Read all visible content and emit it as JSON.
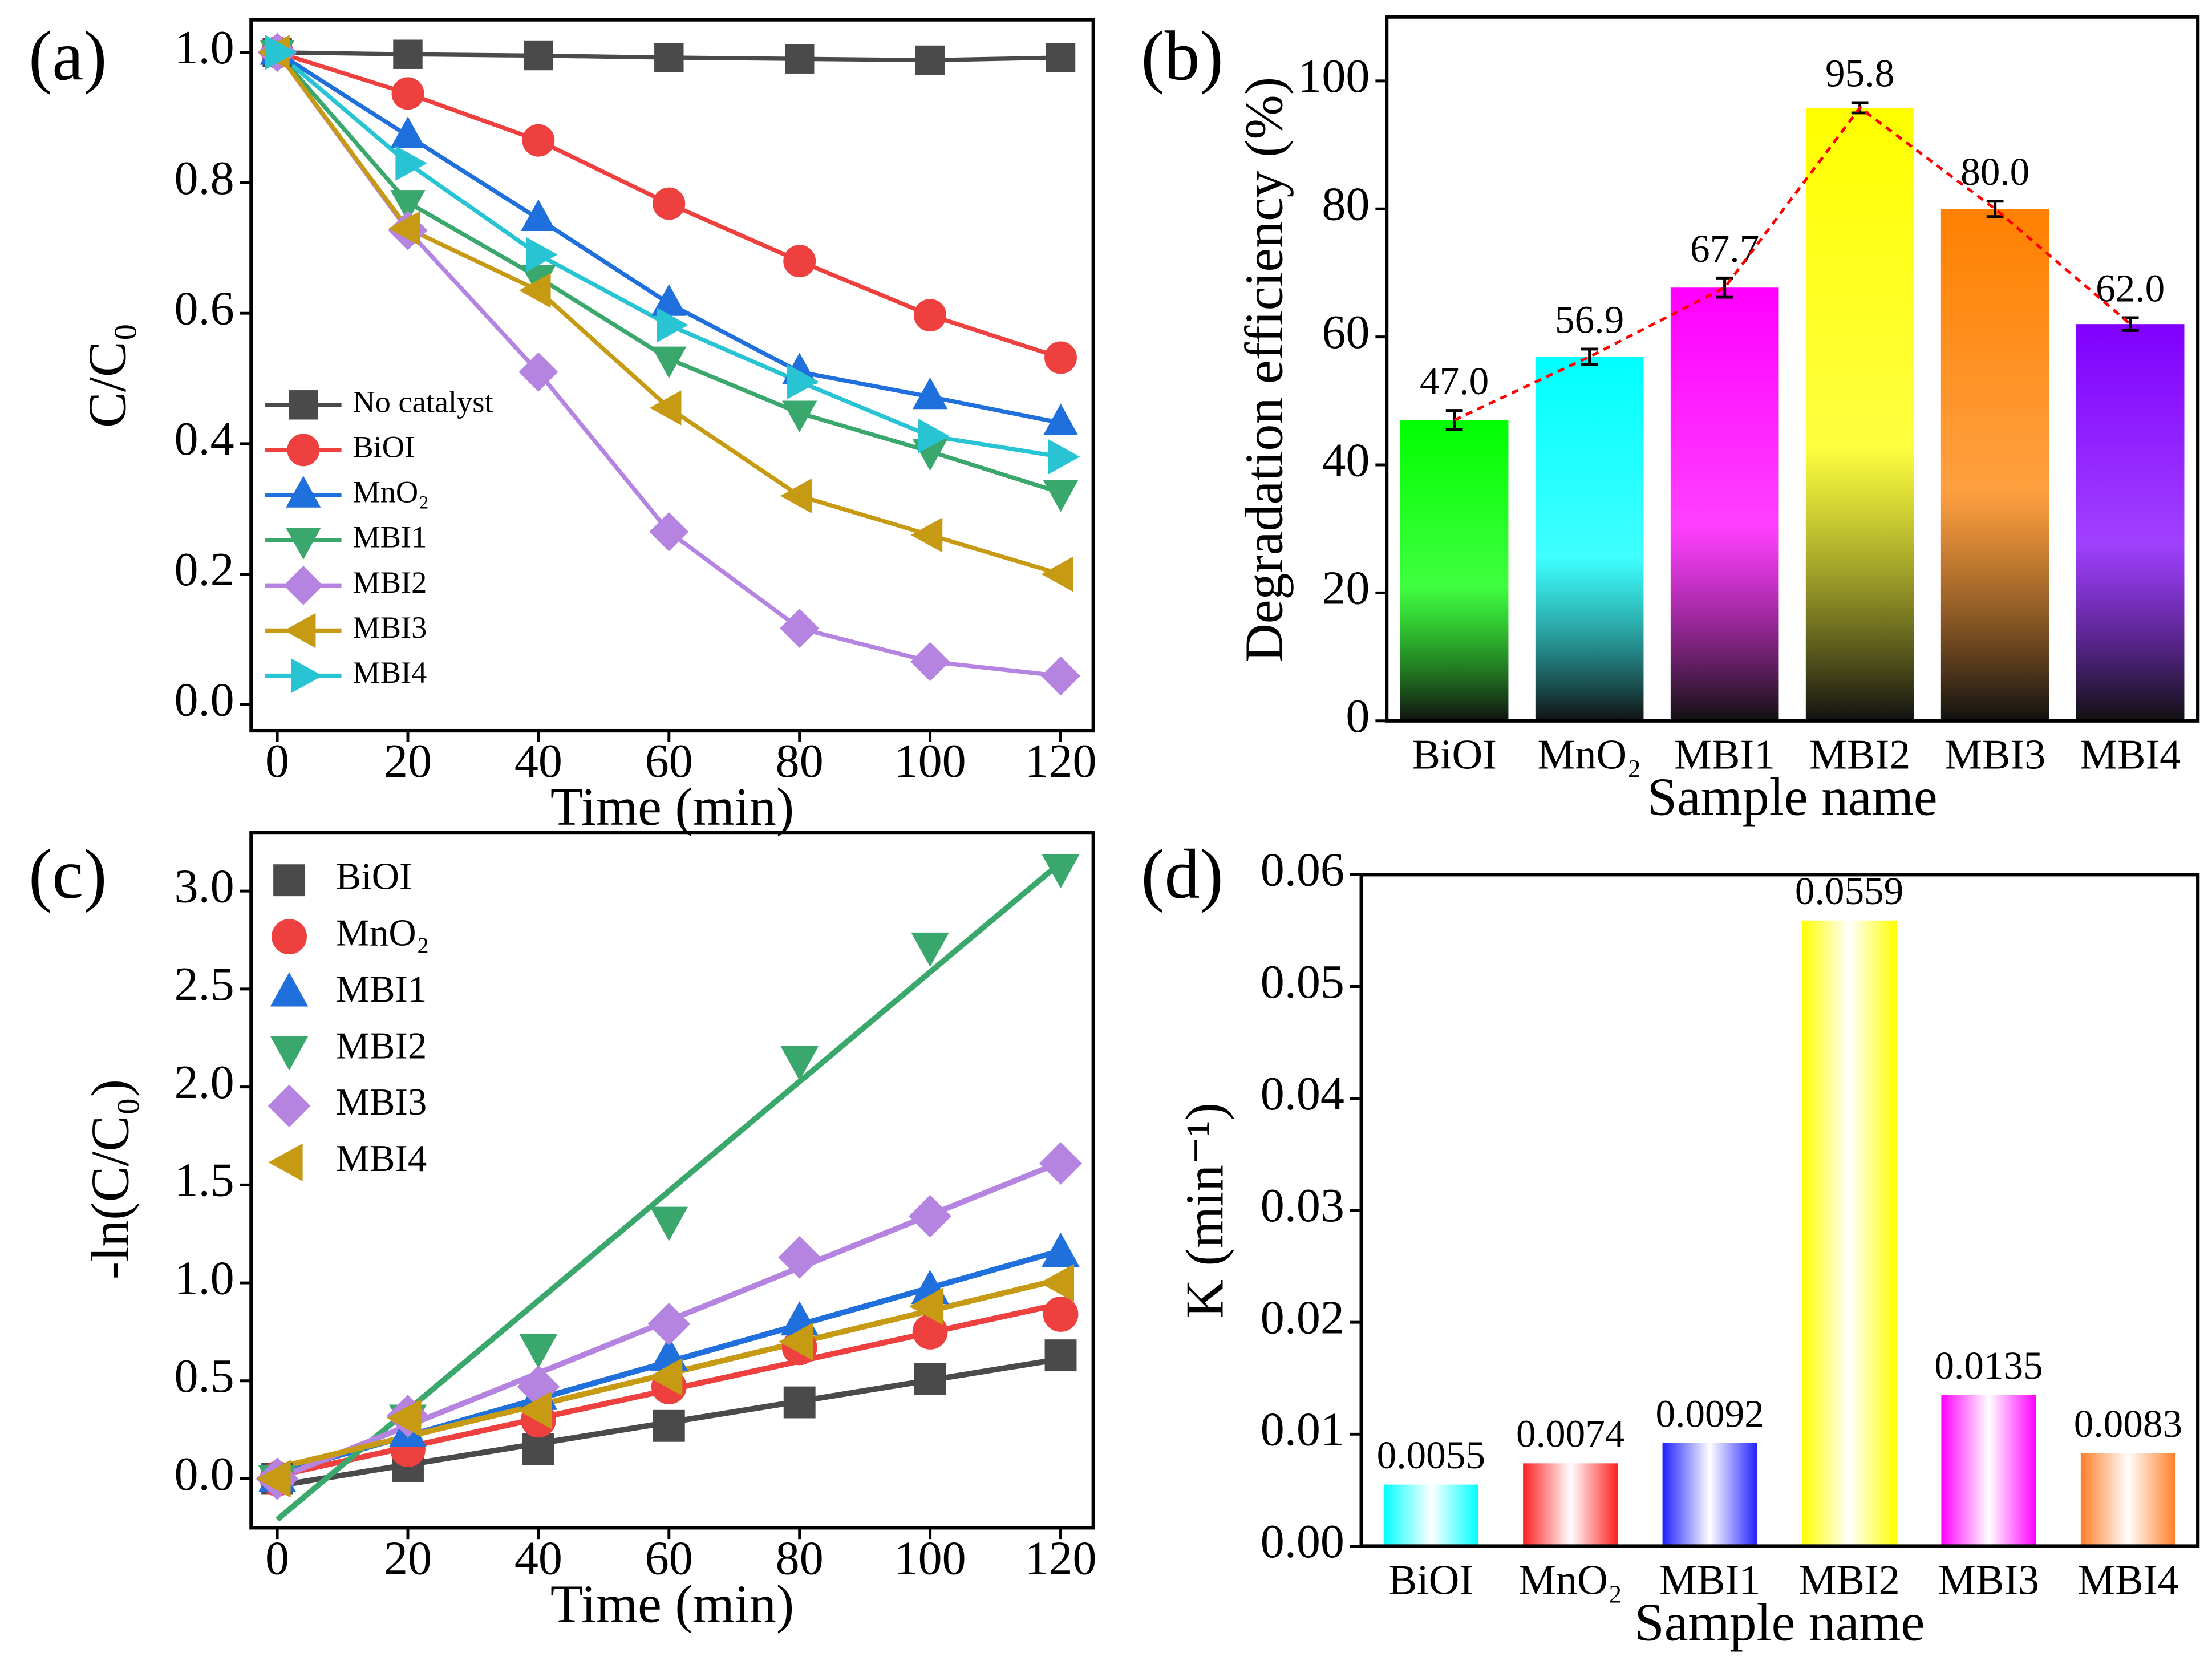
{
  "chart_data": [
    {
      "type": "line",
      "panel_label": "(a)",
      "x_label": "Time (min)",
      "y_label": "C/C₀",
      "x": [
        0,
        20,
        40,
        60,
        80,
        100,
        120
      ],
      "xlim": [
        -4,
        125
      ],
      "xticks": [
        0,
        20,
        40,
        60,
        80,
        100,
        120
      ],
      "ylim": [
        -0.04,
        1.05
      ],
      "yticks": [
        {
          "value": 0,
          "label": "0.0"
        },
        0.2,
        0.4,
        0.6,
        0.8,
        {
          "value": 1,
          "label": "1.0"
        }
      ],
      "legend": "lower left",
      "series": [
        {
          "name": "No catalyst",
          "color": "#4a4a4a",
          "marker": "square",
          "values": [
            1.0,
            0.997,
            0.995,
            0.992,
            0.99,
            0.988,
            0.992
          ]
        },
        {
          "name": "BiOI",
          "color": "#ef4040",
          "marker": "circle",
          "values": [
            1.0,
            0.937,
            0.865,
            0.768,
            0.68,
            0.597,
            0.532
          ]
        },
        {
          "name": "MnO₂",
          "color": "#1f6fdc",
          "marker": "triangle-up",
          "values": [
            1.0,
            0.872,
            0.745,
            0.615,
            0.51,
            0.472,
            0.432
          ]
        },
        {
          "name": "MBI1",
          "color": "#3aa76d",
          "marker": "triangle-down",
          "values": [
            1.0,
            0.77,
            0.655,
            0.53,
            0.447,
            0.388,
            0.325
          ]
        },
        {
          "name": "MBI2",
          "color": "#b583e0",
          "marker": "diamond",
          "values": [
            1.0,
            0.727,
            0.51,
            0.265,
            0.117,
            0.066,
            0.044
          ]
        },
        {
          "name": "MBI3",
          "color": "#c79a14",
          "marker": "triangle-left",
          "values": [
            1.0,
            0.73,
            0.635,
            0.455,
            0.32,
            0.26,
            0.2
          ]
        },
        {
          "name": "MBI4",
          "color": "#29c4d4",
          "marker": "triangle-right",
          "values": [
            1.0,
            0.83,
            0.69,
            0.582,
            0.495,
            0.412,
            0.38
          ]
        }
      ]
    },
    {
      "type": "bar",
      "panel_label": "(b)",
      "x_label": "Sample name",
      "y_label": "Degradation efficiency (%)",
      "categories": [
        "BiOI",
        "MnO₂",
        "MBI1",
        "MBI2",
        "MBI3",
        "MBI4"
      ],
      "values": [
        47.0,
        56.9,
        67.7,
        95.8,
        80.0,
        62.0
      ],
      "value_labels": [
        "47.0",
        "56.9",
        "67.7",
        "95.8",
        "80.0",
        "62.0"
      ],
      "errors": [
        1.5,
        1.2,
        1.5,
        0.8,
        1.2,
        1.0
      ],
      "colors": [
        "#00ff00",
        "#00ffff",
        "#ff00ff",
        "#ffff00",
        "#ff8000",
        "#8000ff"
      ],
      "gradient": "to-dark",
      "trend_line_color": "#ff0000",
      "ylim": [
        0,
        110
      ],
      "yticks": [
        0,
        20,
        40,
        60,
        80,
        100
      ]
    },
    {
      "type": "scatter",
      "panel_label": "(c)",
      "x_label": "Time (min)",
      "y_label": "-ln(C/C₀)",
      "x": [
        0,
        20,
        40,
        60,
        80,
        100,
        120
      ],
      "xlim": [
        -4,
        125
      ],
      "xticks": [
        0,
        20,
        40,
        60,
        80,
        100,
        120
      ],
      "ylim": [
        -0.25,
        3.3
      ],
      "yticks": [
        {
          "value": 0,
          "label": "0.0"
        },
        0.5,
        {
          "value": 1,
          "label": "1.0"
        },
        1.5,
        {
          "value": 2,
          "label": "2.0"
        },
        2.5,
        {
          "value": 3,
          "label": "3.0"
        }
      ],
      "linear_fit": true,
      "legend": "upper left",
      "series": [
        {
          "name": "BiOI",
          "color": "#4a4a4a",
          "marker": "square",
          "values": [
            0,
            0.065,
            0.15,
            0.27,
            0.39,
            0.51,
            0.63
          ]
        },
        {
          "name": "MnO₂",
          "color": "#ef4040",
          "marker": "circle",
          "values": [
            0,
            0.15,
            0.3,
            0.47,
            0.67,
            0.75,
            0.84
          ]
        },
        {
          "name": "MBI1",
          "color": "#1f6fdc",
          "marker": "triangle-up",
          "values": [
            0,
            0.23,
            0.42,
            0.62,
            0.8,
            0.96,
            1.15
          ]
        },
        {
          "name": "MBI2",
          "color": "#3aa76d",
          "marker": "triangle-down",
          "values": [
            0,
            0.31,
            0.67,
            1.32,
            2.14,
            2.72,
            3.12
          ]
        },
        {
          "name": "MBI3",
          "color": "#b583e0",
          "marker": "diamond",
          "values": [
            0,
            0.32,
            0.47,
            0.79,
            1.13,
            1.34,
            1.61
          ]
        },
        {
          "name": "MBI4",
          "color": "#c79a14",
          "marker": "triangle-left",
          "values": [
            0,
            0.31,
            0.35,
            0.52,
            0.7,
            0.88,
            1.0
          ]
        }
      ]
    },
    {
      "type": "bar",
      "panel_label": "(d)",
      "x_label": "Sample name",
      "y_label": "K (min⁻¹)",
      "categories": [
        "BiOI",
        "MnO₂",
        "MBI1",
        "MBI2",
        "MBI3",
        "MBI4"
      ],
      "values": [
        0.0055,
        0.0074,
        0.0092,
        0.0559,
        0.0135,
        0.0083
      ],
      "colors": [
        "#00ffff",
        "#ff2020",
        "#2020ff",
        "#ffff00",
        "#ff00ff",
        "#ff7f27"
      ],
      "gradient": "to-white-center",
      "ylim": [
        0,
        0.06
      ],
      "yticks": [
        {
          "value": 0,
          "label": "0.00"
        },
        0.01,
        0.02,
        0.03,
        0.04,
        0.05,
        0.06
      ]
    }
  ]
}
